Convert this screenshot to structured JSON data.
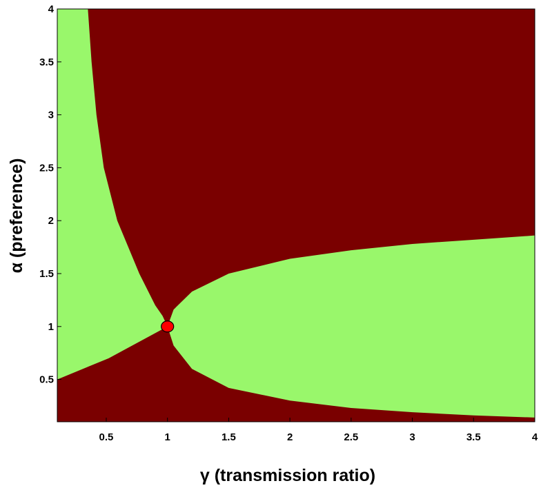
{
  "chart_data": {
    "type": "heatmap",
    "xlabel": "γ (transmission ratio)",
    "ylabel": "α (preference)",
    "xlim": [
      0.1,
      4
    ],
    "ylim": [
      0.1,
      4
    ],
    "x_ticks": [
      "0.5",
      "1",
      "1.5",
      "2",
      "2.5",
      "3",
      "3.5",
      "4"
    ],
    "y_ticks": [
      "0.5",
      "1",
      "1.5",
      "2",
      "2.5",
      "3",
      "3.5",
      "4"
    ],
    "grid": false,
    "regions": [
      {
        "color": "#7a0000"
      },
      {
        "color": "#99f76b"
      }
    ],
    "left_green_boundary": {
      "y": [
        0.1,
        0.5,
        0.7,
        0.9,
        1.0,
        1.1,
        1.2,
        1.5,
        2.0,
        2.5,
        3.0,
        3.5,
        4.0
      ],
      "x": [
        0.1,
        0.1,
        0.52,
        0.84,
        1.0,
        0.96,
        0.9,
        0.77,
        0.59,
        0.48,
        0.42,
        0.38,
        0.35
      ]
    },
    "right_green_boundary": {
      "x": [
        1.0,
        1.05,
        1.2,
        1.5,
        2.0,
        2.5,
        3.0,
        3.5,
        4.0
      ],
      "upper_y": [
        1.0,
        1.16,
        1.33,
        1.5,
        1.64,
        1.72,
        1.78,
        1.82,
        1.86
      ],
      "lower_y": [
        1.0,
        0.82,
        0.6,
        0.42,
        0.3,
        0.23,
        0.19,
        0.16,
        0.14
      ]
    },
    "marker": {
      "x": 1,
      "y": 1,
      "color": "#ff0000"
    }
  }
}
